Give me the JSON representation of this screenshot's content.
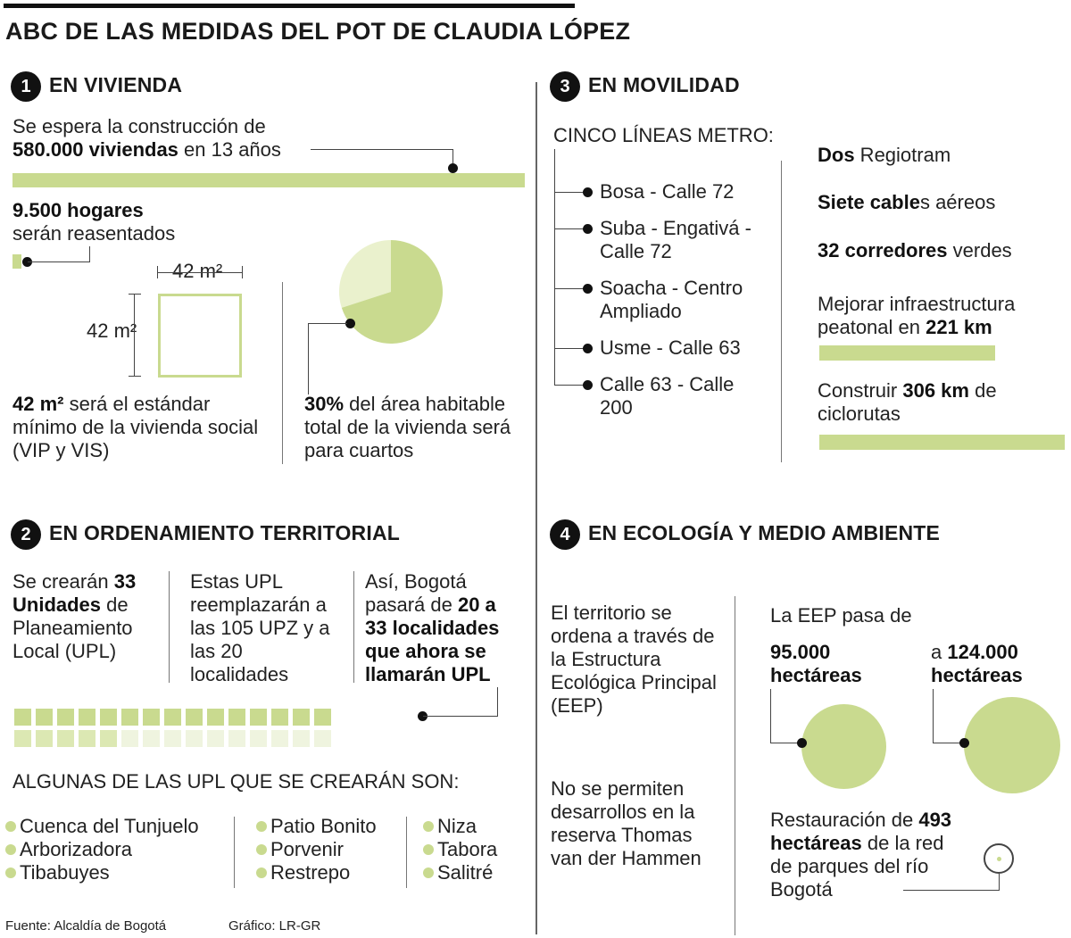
{
  "title": "ABC DE LAS MEDIDAS DEL POT DE CLAUDIA LÓPEZ",
  "colors": {
    "accent": "#c9da8f",
    "accent_light": "#eaf1cd",
    "ink": "#111111"
  },
  "s1": {
    "num": "1",
    "heading": "EN VIVIENDA",
    "construction_line1": "Se espera la construcción de",
    "construction_bold": "580.000 viviendas",
    "construction_rest": " en 13 años",
    "hogares_bold": "9.500 hogares",
    "hogares_rest": "serán reasentados",
    "dim_top": "42 m²",
    "dim_side": "42 m²",
    "std_bold": "42 m²",
    "std_rest": " será el estándar mínimo de la vivienda social (VIP y VIS)",
    "pct_bold": "30%",
    "pct_rest": " del área habitable total de la vivienda será para cuartos",
    "pie_percent": 30,
    "bar_fraction_hogares": 0.0164
  },
  "s2": {
    "num": "2",
    "heading": "EN ORDENAMIENTO TERRITORIAL",
    "col1_pre": "Se crearán ",
    "col1_bold": "33 Unidades",
    "col1_rest": " de Planeamiento Local (UPL)",
    "col2": "Estas UPL reemplazarán a las 105 UPZ y a las 20 localidades",
    "col3_pre": "Así, Bogotá pasará de ",
    "col3_bold": "20 a 33 localidades que ahora se llamarán UPL",
    "grid_total": 33,
    "grid_highlight": 20,
    "upl_title": "ALGUNAS DE LAS UPL QUE SE CREARÁN SON:",
    "upl_col1": [
      "Cuenca del Tunjuelo",
      "Arborizadora",
      "Tibabuyes"
    ],
    "upl_col2": [
      "Patio Bonito",
      "Porvenir",
      "Restrepo"
    ],
    "upl_col3": [
      "Niza",
      "Tabora",
      "Salitré"
    ]
  },
  "s3": {
    "num": "3",
    "heading": "EN MOVILIDAD",
    "metro_title": "CINCO LÍNEAS METRO:",
    "metro_lines": [
      "Bosa - Calle 72",
      "Suba - Engativá - Calle 72",
      "Soacha - Centro Ampliado",
      "Usme - Calle 63",
      "Calle 63 - Calle 200"
    ],
    "r1_bold": "Dos",
    "r1_rest": " Regiotram",
    "r2_bold": "Siete cable",
    "r2_rest": "s aéreos",
    "r3_bold": "32 corredores",
    "r3_rest": " verdes",
    "r4_pre": "Mejorar infraestructura peatonal en ",
    "r4_bold": "221 km",
    "r5_pre": "Construir ",
    "r5_bold": "306 km",
    "r5_rest": " de ciclorutas",
    "km_peatonal": 221,
    "km_ciclorutas": 306
  },
  "s4": {
    "num": "4",
    "heading": "EN ECOLOGÍA Y MEDIO AMBIENTE",
    "left1": "El territorio se ordena a través de la Estructura Ecológica Principal (EEP)",
    "left2": "No se permiten desarrollos en la reserva Thomas van der Hammen",
    "eep_title": "La EEP pasa de",
    "from_bold": "95.000 hectáreas",
    "to_pre": "a ",
    "to_bold": "124.000 hectáreas",
    "rest_pre": "Restauración de ",
    "rest_bold": "493 hectáreas",
    "rest_rest": " de la red de parques del río Bogotá",
    "ha_from": 95000,
    "ha_to": 124000,
    "ha_restore": 493
  },
  "footer": {
    "source": "Fuente: Alcaldía de Bogotá",
    "credit": "Gráfico: LR-GR"
  }
}
